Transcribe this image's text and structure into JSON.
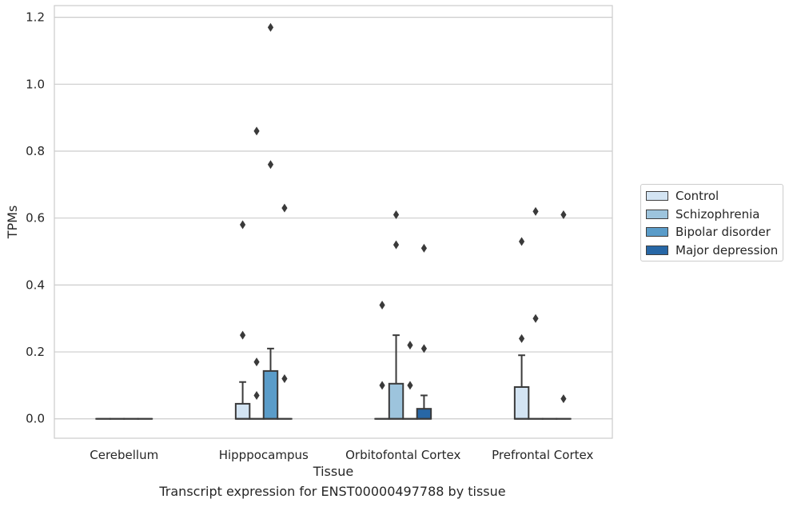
{
  "chart_data": {
    "type": "box",
    "xlabel": "Tissue",
    "ylabel": "TPMs",
    "ylim": [
      -0.058,
      1.235
    ],
    "yticks": [
      "0.0",
      "0.2",
      "0.4",
      "0.6",
      "0.8",
      "1.0",
      "1.2"
    ],
    "ytick_values": [
      0,
      0.2,
      0.4,
      0.6,
      0.8,
      1.0,
      1.2
    ],
    "grid": true,
    "legend_position": "outside-right",
    "categories": [
      "Cerebellum",
      "Hipppocampus",
      "Orbitofontal Cortex",
      "Prefrontal Cortex"
    ],
    "series": [
      {
        "name": "Control",
        "color": "#d3e4f3",
        "boxes": [
          {
            "q1": 0,
            "median": 0,
            "q3": 0,
            "whisker_low": 0,
            "whisker_high": 0,
            "outliers": []
          },
          {
            "q1": 0,
            "median": 0,
            "q3": 0.045,
            "whisker_low": 0,
            "whisker_high": 0.11,
            "outliers": [
              0.58,
              0.25
            ]
          },
          {
            "q1": 0,
            "median": 0,
            "q3": 0,
            "whisker_low": 0,
            "whisker_high": 0,
            "outliers": [
              0.34,
              0.1
            ]
          },
          {
            "q1": 0,
            "median": 0,
            "q3": 0.095,
            "whisker_low": 0,
            "whisker_high": 0.19,
            "outliers": [
              0.53,
              0.24
            ]
          }
        ]
      },
      {
        "name": "Schizophrenia",
        "color": "#9dc4dd",
        "boxes": [
          {
            "q1": 0,
            "median": 0,
            "q3": 0,
            "whisker_low": 0,
            "whisker_high": 0,
            "outliers": []
          },
          {
            "q1": 0,
            "median": 0,
            "q3": 0,
            "whisker_low": 0,
            "whisker_high": 0,
            "outliers": [
              0.86,
              0.17,
              0.07
            ]
          },
          {
            "q1": 0,
            "median": 0,
            "q3": 0.105,
            "whisker_low": 0,
            "whisker_high": 0.25,
            "outliers": [
              0.61,
              0.52
            ]
          },
          {
            "q1": 0,
            "median": 0,
            "q3": 0,
            "whisker_low": 0,
            "whisker_high": 0,
            "outliers": [
              0.62,
              0.3
            ]
          }
        ]
      },
      {
        "name": "Bipolar disorder",
        "color": "#5a9cc9",
        "boxes": [
          {
            "q1": 0,
            "median": 0,
            "q3": 0,
            "whisker_low": 0,
            "whisker_high": 0,
            "outliers": []
          },
          {
            "q1": 0,
            "median": 0,
            "q3": 0.143,
            "whisker_low": 0,
            "whisker_high": 0.21,
            "outliers": [
              1.17,
              0.76
            ]
          },
          {
            "q1": 0,
            "median": 0,
            "q3": 0,
            "whisker_low": 0,
            "whisker_high": 0,
            "outliers": [
              0.22,
              0.1
            ]
          },
          {
            "q1": 0,
            "median": 0,
            "q3": 0,
            "whisker_low": 0,
            "whisker_high": 0,
            "outliers": []
          }
        ]
      },
      {
        "name": "Major depression",
        "color": "#2767a6",
        "boxes": [
          {
            "q1": 0,
            "median": 0,
            "q3": 0,
            "whisker_low": 0,
            "whisker_high": 0,
            "outliers": []
          },
          {
            "q1": 0,
            "median": 0,
            "q3": 0,
            "whisker_low": 0,
            "whisker_high": 0,
            "outliers": [
              0.63,
              0.12
            ]
          },
          {
            "q1": 0,
            "median": 0,
            "q3": 0.03,
            "whisker_low": 0,
            "whisker_high": 0.07,
            "outliers": [
              0.51,
              0.21
            ]
          },
          {
            "q1": 0,
            "median": 0,
            "q3": 0,
            "whisker_low": 0,
            "whisker_high": 0,
            "outliers": [
              0.61,
              0.06
            ]
          }
        ]
      }
    ]
  },
  "caption": "Transcript expression for ENST00000497788 by tissue"
}
